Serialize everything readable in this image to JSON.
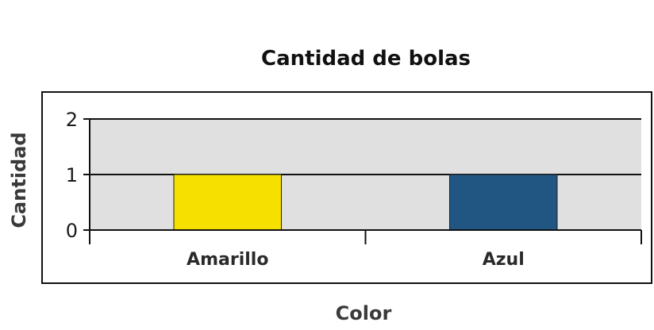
{
  "chart_data": {
    "type": "bar",
    "title": "Cantidad de bolas",
    "xlabel": "Color",
    "ylabel": "Cantidad",
    "categories": [
      "Amarillo",
      "Azul"
    ],
    "values": [
      1,
      1
    ],
    "colors": [
      "#f5e000",
      "#215682"
    ],
    "ylim": [
      0,
      2
    ],
    "yticks": [
      "0",
      "1",
      "2"
    ],
    "grid": true,
    "plot_background": "#e0e0e0"
  }
}
